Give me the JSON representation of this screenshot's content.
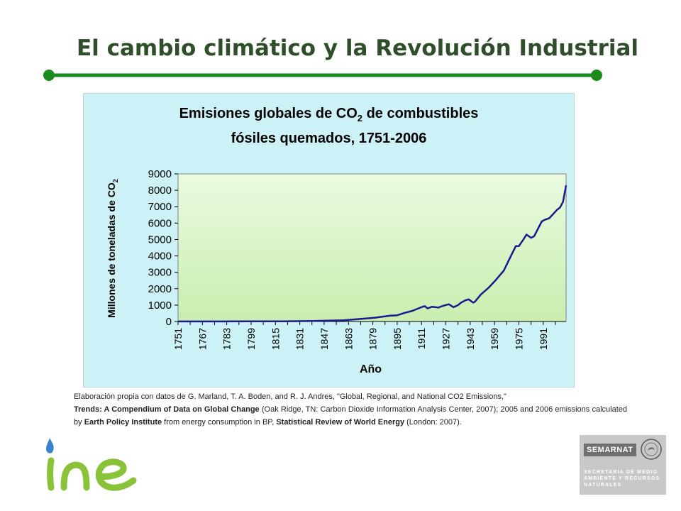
{
  "slide": {
    "title": "El cambio climático y la Revolución Industrial",
    "accent_color": "#1a8a1a"
  },
  "chart_data": {
    "type": "line",
    "title_line1_pre": "Emisiones globales de CO",
    "title_line1_sub": "2",
    "title_line1_post": " de combustibles",
    "title_line2": "fósiles quemados, 1751-2006",
    "ylabel_main": "Millones de toneladas de CO",
    "ylabel_sub": "2",
    "xlabel": "Año",
    "xlim": [
      1751,
      2006
    ],
    "ylim": [
      0,
      9000
    ],
    "yticks": [
      0,
      1000,
      2000,
      3000,
      4000,
      5000,
      6000,
      7000,
      8000,
      9000
    ],
    "xtick_labels": [
      "1751",
      "1767",
      "1783",
      "1799",
      "1815",
      "1831",
      "1847",
      "1863",
      "1879",
      "1895",
      "1911",
      "1927",
      "1943",
      "1959",
      "1975",
      "1991"
    ],
    "grid": false,
    "legend": "none",
    "series": [
      {
        "color": "#1a1a8c",
        "x": [
          1751,
          1780,
          1800,
          1820,
          1840,
          1850,
          1860,
          1870,
          1880,
          1890,
          1895,
          1900,
          1905,
          1910,
          1913,
          1915,
          1918,
          1920,
          1922,
          1925,
          1929,
          1932,
          1935,
          1937,
          1940,
          1942,
          1945,
          1946,
          1950,
          1955,
          1960,
          1965,
          1970,
          1973,
          1975,
          1978,
          1980,
          1983,
          1985,
          1990,
          1992,
          1995,
          2000,
          2002,
          2004,
          2006
        ],
        "y": [
          3,
          5,
          8,
          15,
          30,
          50,
          80,
          150,
          230,
          350,
          380,
          530,
          650,
          840,
          940,
          800,
          900,
          880,
          850,
          950,
          1050,
          870,
          1000,
          1150,
          1300,
          1350,
          1150,
          1200,
          1650,
          2050,
          2550,
          3100,
          4050,
          4600,
          4600,
          5000,
          5300,
          5100,
          5200,
          6100,
          6200,
          6300,
          6800,
          6950,
          7300,
          8300
        ]
      }
    ]
  },
  "source": {
    "line1": "Elaboración propia con datos de G. Marland, T.  A. Boden, and R. J. Andres, \"Global, Regional, and National CO2 Emissions,\"",
    "trends_bold": "Trends: A Compendium of Data on Global Change",
    "trends_rest": " (Oak Ridge, TN: Carbon Dioxide Information Analysis Center, 2007); 2005 and 2006 emissions calculated by ",
    "epi_bold": "Earth Policy Institute",
    "epi_rest": " from energy consumption in BP, ",
    "bp_bold": "Statistical Review of World Energy",
    "bp_rest": " (London: 2007)."
  },
  "logos": {
    "ine_text": "ine",
    "semarnat_name": "SEMARNAT",
    "semarnat_subtitle": "SECRETARÍA DE MEDIO AMBIENTE Y RECURSOS NATURALES"
  }
}
